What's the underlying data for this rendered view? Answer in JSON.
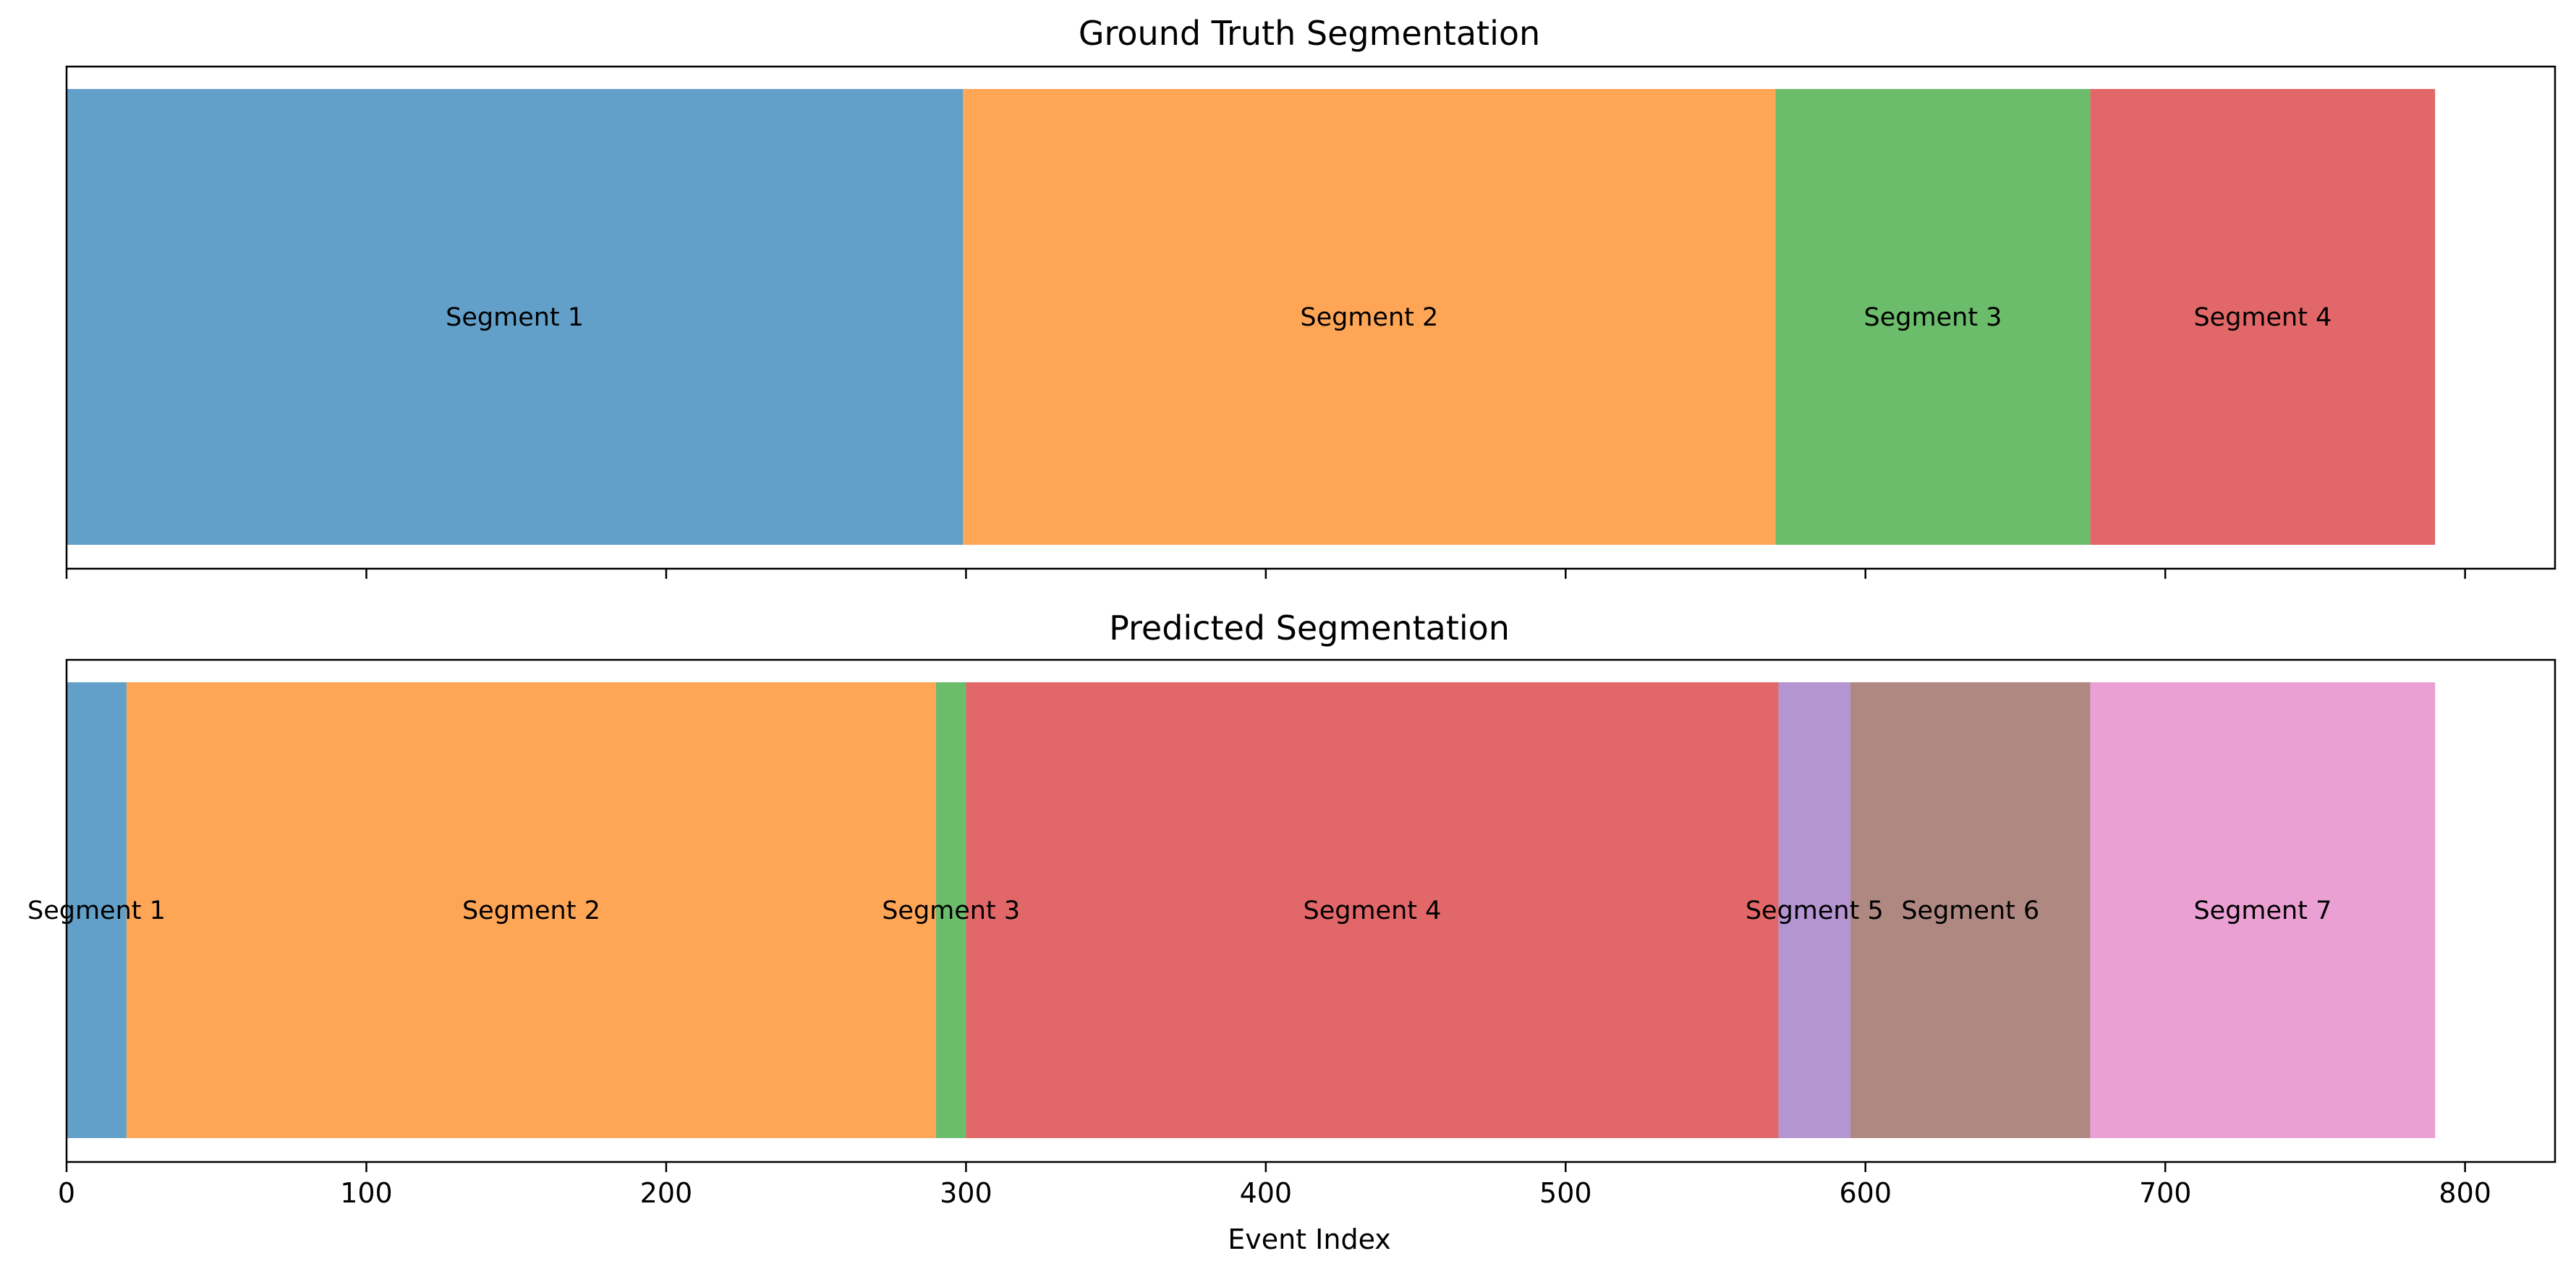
{
  "chart_data": [
    {
      "type": "bar",
      "title": "Ground Truth Segmentation",
      "xlabel": "",
      "ylabel": "",
      "xlim": [
        0,
        830
      ],
      "segments": [
        {
          "label": "Segment 1",
          "start": 0,
          "end": 299,
          "color": "#1f77b4"
        },
        {
          "label": "Segment 2",
          "start": 299,
          "end": 570,
          "color": "#ff7f0e"
        },
        {
          "label": "Segment 3",
          "start": 570,
          "end": 675,
          "color": "#2ca02c"
        },
        {
          "label": "Segment 4",
          "start": 675,
          "end": 790,
          "color": "#d62728"
        }
      ]
    },
    {
      "type": "bar",
      "title": "Predicted Segmentation",
      "xlabel": "Event Index",
      "ylabel": "",
      "xlim": [
        0,
        830
      ],
      "xticks": [
        "0",
        "100",
        "200",
        "300",
        "400",
        "500",
        "600",
        "700",
        "800"
      ],
      "segments": [
        {
          "label": "Segment 1",
          "start": 0,
          "end": 20,
          "color": "#1f77b4"
        },
        {
          "label": "Segment 2",
          "start": 20,
          "end": 290,
          "color": "#ff7f0e"
        },
        {
          "label": "Segment 3",
          "start": 290,
          "end": 300,
          "color": "#2ca02c"
        },
        {
          "label": "Segment 4",
          "start": 300,
          "end": 571,
          "color": "#d62728"
        },
        {
          "label": "Segment 5",
          "start": 571,
          "end": 595,
          "color": "#9467bd"
        },
        {
          "label": "Segment 6",
          "start": 595,
          "end": 675,
          "color": "#8c564b"
        },
        {
          "label": "Segment 7",
          "start": 675,
          "end": 790,
          "color": "#e377c2"
        }
      ]
    }
  ],
  "style": {
    "bar_opacity": 0.7,
    "background": "#ffffff",
    "axis_color": "#000000"
  }
}
